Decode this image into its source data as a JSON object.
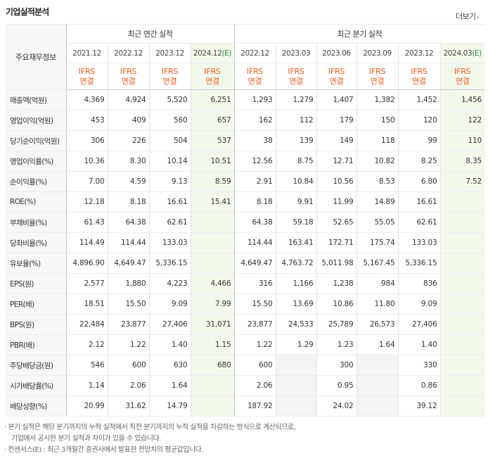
{
  "title": "기업실적분석",
  "more_label": "더보기",
  "corner_label": "주요재무정보",
  "group_annual": "최근 연간 실적",
  "group_quarter": "최근 분기 실적",
  "periods": [
    "2021.12",
    "2022.12",
    "2023.12",
    "2024.12(E)",
    "2022.12",
    "2023.03",
    "2023.06",
    "2023.09",
    "2023.12",
    "2024.03(E)"
  ],
  "ifrs_line1": "IFRS",
  "ifrs_line2": "연결",
  "rows": [
    {
      "label": "매출액(억원)",
      "values": [
        "4,369",
        "4,924",
        "5,520",
        "6,251",
        "1,293",
        "1,279",
        "1,407",
        "1,382",
        "1,452",
        "1,456"
      ]
    },
    {
      "label": "영업이익(억원)",
      "values": [
        "453",
        "409",
        "560",
        "657",
        "162",
        "112",
        "179",
        "150",
        "120",
        "122"
      ]
    },
    {
      "label": "당기순이익(억원)",
      "values": [
        "306",
        "226",
        "504",
        "537",
        "38",
        "139",
        "149",
        "118",
        "99",
        "110"
      ]
    },
    {
      "label": "영업이익률(%)",
      "values": [
        "10.36",
        "8.30",
        "10.14",
        "10.51",
        "12.56",
        "8.75",
        "12.71",
        "10.82",
        "8.25",
        "8.35"
      ]
    },
    {
      "label": "순이익률(%)",
      "values": [
        "7.00",
        "4.59",
        "9.13",
        "8.59",
        "2.91",
        "10.84",
        "10.56",
        "8.53",
        "6.80",
        "7.52"
      ]
    },
    {
      "label": "ROE(%)",
      "values": [
        "12.18",
        "8.18",
        "16.61",
        "15.41",
        "8.18",
        "9.91",
        "11.99",
        "14.89",
        "16.61",
        ""
      ]
    },
    {
      "label": "부채비율(%)",
      "values": [
        "61.43",
        "64.38",
        "62.61",
        "",
        "64.38",
        "59.18",
        "52.65",
        "55.05",
        "62.61",
        ""
      ]
    },
    {
      "label": "당좌비율(%)",
      "values": [
        "114.49",
        "114.44",
        "133.03",
        "",
        "114.44",
        "163.41",
        "172.71",
        "175.74",
        "133.03",
        ""
      ]
    },
    {
      "label": "유보율(%)",
      "values": [
        "4,896.90",
        "4,649.47",
        "5,336.15",
        "",
        "4,649.47",
        "4,763.72",
        "5,011.98",
        "5,167.45",
        "5,336.15",
        ""
      ]
    },
    {
      "label": "EPS(원)",
      "values": [
        "2,577",
        "1,880",
        "4,223",
        "4,466",
        "316",
        "1,166",
        "1,238",
        "984",
        "836",
        ""
      ]
    },
    {
      "label": "PER(배)",
      "values": [
        "18.51",
        "15.50",
        "9.09",
        "7.99",
        "15.50",
        "13.69",
        "10.86",
        "11.80",
        "9.09",
        ""
      ]
    },
    {
      "label": "BPS(원)",
      "values": [
        "22,484",
        "23,877",
        "27,406",
        "31,071",
        "23,877",
        "24,533",
        "25,789",
        "26,573",
        "27,406",
        ""
      ]
    },
    {
      "label": "PBR(배)",
      "values": [
        "2.12",
        "1.22",
        "1.40",
        "1.15",
        "1.22",
        "1.29",
        "1.23",
        "1.64",
        "1.40",
        ""
      ]
    },
    {
      "label": "주당배당금(원)",
      "values": [
        "546",
        "600",
        "630",
        "680",
        "600",
        "",
        "300",
        "",
        "330",
        ""
      ]
    },
    {
      "label": "시가배당률(%)",
      "values": [
        "1.14",
        "2.06",
        "1.64",
        "",
        "2.06",
        "",
        "0.95",
        "",
        "0.86",
        ""
      ]
    },
    {
      "label": "배당성향(%)",
      "values": [
        "20.99",
        "31.62",
        "14.79",
        "",
        "187.92",
        "",
        "24.02",
        "",
        "39.12",
        ""
      ]
    }
  ],
  "notes": [
    "· 분기 실적은 해당 분기까지의 누적 실적에서 직전 분기까지의 누적 실적을 차감하는 방식으로 계산되므로,",
    "기업에서 공시한 분기 실적과 차이가 있을 수 있습니다.",
    "· 컨센서스(E) : 최근 3개월간 증권사에서 발표한 전망치의 평균값입니다."
  ]
}
